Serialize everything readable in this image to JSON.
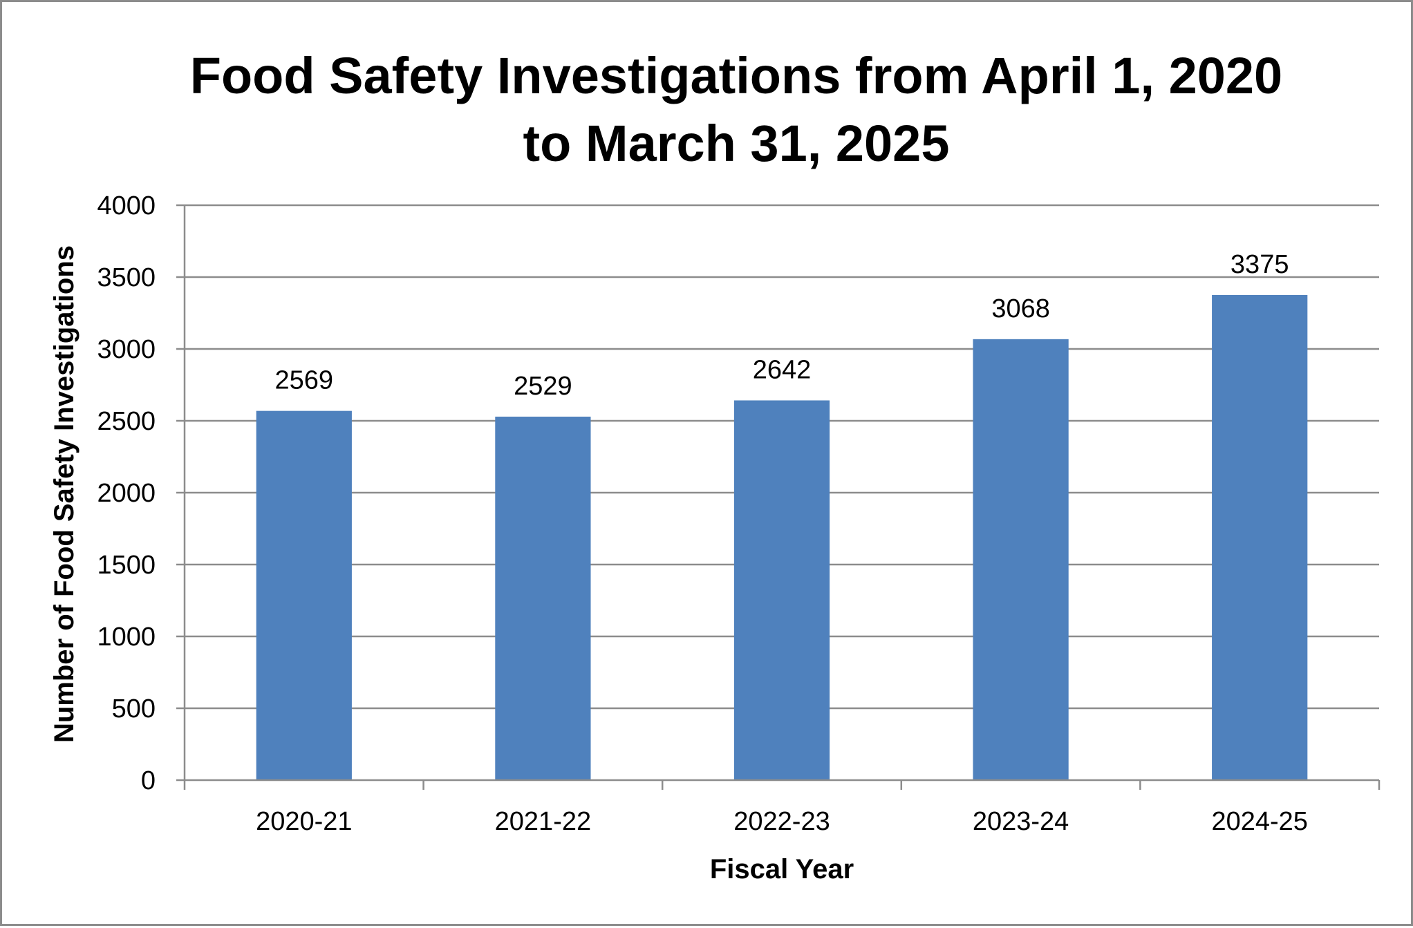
{
  "chart_data": {
    "type": "bar",
    "title": [
      "Food Safety Investigations from April 1, 2020",
      "to March 31, 2025"
    ],
    "xlabel": "Fiscal Year",
    "ylabel": "Number of Food Safety Investigations",
    "categories": [
      "2020-21",
      "2021-22",
      "2022-23",
      "2023-24",
      "2024-25"
    ],
    "values": [
      2569,
      2529,
      2642,
      3068,
      3375
    ],
    "data_labels": [
      "2569",
      "2529",
      "2642",
      "3068",
      "3375"
    ],
    "ylim": [
      0,
      4000
    ],
    "yticks": [
      0,
      500,
      1000,
      1500,
      2000,
      2500,
      3000,
      3500,
      4000
    ],
    "ytick_labels": [
      "0",
      "500",
      "1000",
      "1500",
      "2000",
      "2500",
      "3000",
      "3500",
      "4000"
    ],
    "grid": true,
    "legend": "none",
    "colors": {
      "bar": "#4f81bd",
      "grid": "#8c8c8c",
      "axis": "#8c8c8c",
      "border": "#8c8c8c",
      "text": "#000000"
    }
  }
}
